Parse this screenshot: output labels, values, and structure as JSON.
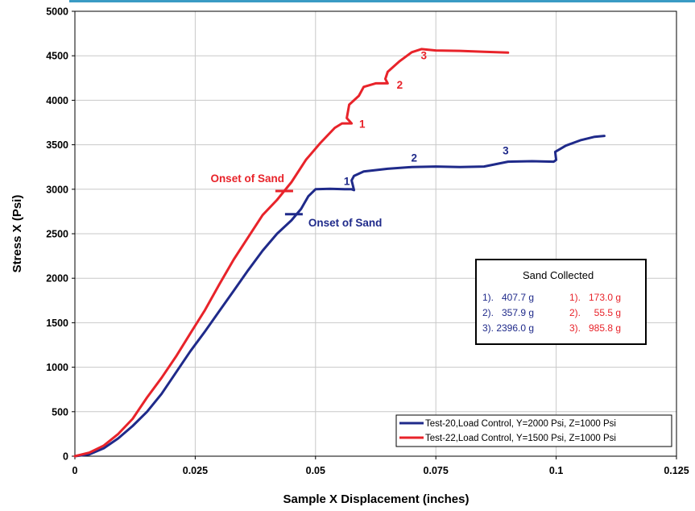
{
  "chart_data": {
    "type": "line",
    "xlabel": "Sample X Displacement (inches)",
    "ylabel": "Stress X (Psi)",
    "xlim": [
      0,
      0.125
    ],
    "ylim": [
      0,
      5000
    ],
    "x_ticks": [
      "0",
      "0.025",
      "0.05",
      "0.075",
      "0.1",
      "0.125"
    ],
    "y_ticks": [
      "0",
      "500",
      "1000",
      "1500",
      "2000",
      "2500",
      "3000",
      "3500",
      "4000",
      "4500",
      "5000"
    ],
    "grid": true,
    "legend_position": "bottom-right",
    "series": [
      {
        "name": "Test-20,Load Control, Y=2000 Psi, Z=1000 Psi",
        "color": "#1f2a8a",
        "points": [
          [
            0,
            0
          ],
          [
            0.003,
            20
          ],
          [
            0.006,
            90
          ],
          [
            0.009,
            200
          ],
          [
            0.012,
            340
          ],
          [
            0.015,
            500
          ],
          [
            0.018,
            700
          ],
          [
            0.021,
            940
          ],
          [
            0.024,
            1180
          ],
          [
            0.027,
            1400
          ],
          [
            0.03,
            1630
          ],
          [
            0.033,
            1860
          ],
          [
            0.036,
            2090
          ],
          [
            0.039,
            2310
          ],
          [
            0.042,
            2500
          ],
          [
            0.045,
            2650
          ],
          [
            0.047,
            2780
          ],
          [
            0.0485,
            2920
          ],
          [
            0.05,
            3000
          ],
          [
            0.053,
            3005
          ],
          [
            0.056,
            3000
          ],
          [
            0.0575,
            3000
          ],
          [
            0.058,
            2990
          ],
          [
            0.0575,
            3100
          ],
          [
            0.058,
            3150
          ],
          [
            0.06,
            3200
          ],
          [
            0.065,
            3230
          ],
          [
            0.07,
            3250
          ],
          [
            0.075,
            3255
          ],
          [
            0.08,
            3250
          ],
          [
            0.085,
            3255
          ],
          [
            0.09,
            3310
          ],
          [
            0.095,
            3315
          ],
          [
            0.0995,
            3310
          ],
          [
            0.1,
            3330
          ],
          [
            0.0998,
            3420
          ],
          [
            0.102,
            3490
          ],
          [
            0.105,
            3550
          ],
          [
            0.108,
            3590
          ],
          [
            0.11,
            3600
          ]
        ]
      },
      {
        "name": "Test-22,Load Control, Y=1500 Psi, Z=1000 Psi",
        "color": "#e8232a",
        "points": [
          [
            0,
            0
          ],
          [
            0.003,
            40
          ],
          [
            0.006,
            120
          ],
          [
            0.009,
            250
          ],
          [
            0.012,
            420
          ],
          [
            0.015,
            660
          ],
          [
            0.018,
            880
          ],
          [
            0.021,
            1120
          ],
          [
            0.024,
            1380
          ],
          [
            0.027,
            1640
          ],
          [
            0.03,
            1930
          ],
          [
            0.033,
            2210
          ],
          [
            0.036,
            2460
          ],
          [
            0.039,
            2710
          ],
          [
            0.042,
            2880
          ],
          [
            0.045,
            3080
          ],
          [
            0.048,
            3330
          ],
          [
            0.051,
            3520
          ],
          [
            0.054,
            3690
          ],
          [
            0.0555,
            3740
          ],
          [
            0.0575,
            3740
          ],
          [
            0.0565,
            3800
          ],
          [
            0.057,
            3950
          ],
          [
            0.059,
            4050
          ],
          [
            0.06,
            4150
          ],
          [
            0.0625,
            4190
          ],
          [
            0.065,
            4190
          ],
          [
            0.0645,
            4240
          ],
          [
            0.065,
            4320
          ],
          [
            0.0675,
            4440
          ],
          [
            0.07,
            4540
          ],
          [
            0.072,
            4575
          ],
          [
            0.075,
            4560
          ],
          [
            0.08,
            4555
          ],
          [
            0.085,
            4545
          ],
          [
            0.09,
            4535
          ]
        ]
      }
    ],
    "annotations": [
      {
        "text": "1",
        "x": 0.0597,
        "y": 3690,
        "color": "#e8232a"
      },
      {
        "text": "2",
        "x": 0.0675,
        "y": 4130,
        "color": "#e8232a"
      },
      {
        "text": "3",
        "x": 0.0725,
        "y": 4460,
        "color": "#e8232a"
      },
      {
        "text": "1",
        "x": 0.0565,
        "y": 3050,
        "color": "#1f2a8a"
      },
      {
        "text": "2",
        "x": 0.0705,
        "y": 3310,
        "color": "#1f2a8a"
      },
      {
        "text": "3",
        "x": 0.0895,
        "y": 3390,
        "color": "#1f2a8a"
      },
      {
        "text": "Onset of Sand",
        "x": 0.0435,
        "y": 3080,
        "color": "#e8232a",
        "anchor": "end"
      },
      {
        "text": "Onset of Sand",
        "x": 0.0485,
        "y": 2580,
        "color": "#1f2a8a",
        "anchor": "start"
      }
    ],
    "onset_markers": [
      {
        "x": 0.0435,
        "y": 2980,
        "color": "#e8232a"
      },
      {
        "x": 0.0455,
        "y": 2720,
        "color": "#1f2a8a"
      }
    ],
    "sand_box": {
      "title": "Sand Collected",
      "blue": [
        "1).   407.7 g",
        "2).   357.9 g",
        "3). 2396.0 g"
      ],
      "red": [
        "1).   173.0 g",
        "2).     55.5 g",
        "3).   985.8 g"
      ]
    }
  }
}
